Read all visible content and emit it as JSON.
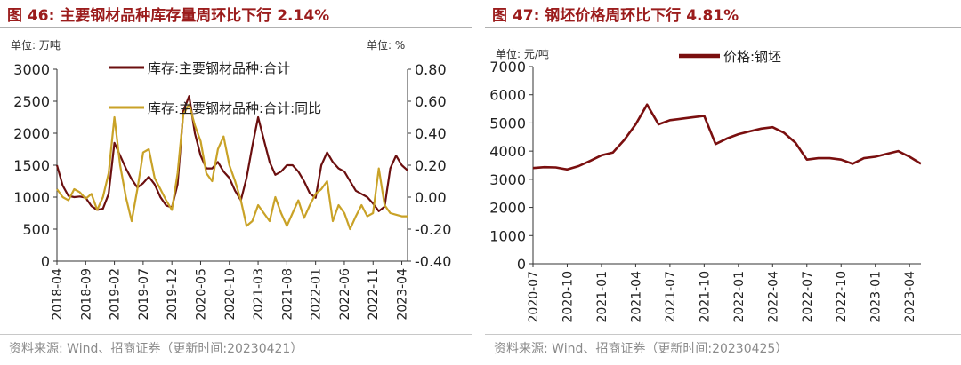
{
  "charts": [
    {
      "title": "图 46:  主要钢材品种库存量周环比下行 2.14%",
      "unit_left": "单位:  万吨",
      "unit_right": "单位:  %",
      "source": "资料来源:  Wind、招商证券（更新时间:20230421）"
    },
    {
      "title": "图 47:  钢坯价格周环比下行 4.81%",
      "unit_left": "单位:  元/吨",
      "source": "资料来源:  Wind、招商证券（更新时间:20230425）"
    }
  ],
  "chart_data": [
    {
      "type": "line",
      "x_tick_labels": [
        "2018-04",
        "2018-09",
        "2019-02",
        "2019-07",
        "2019-12",
        "2020-05",
        "2020-10",
        "2021-03",
        "2021-08",
        "2022-01",
        "2022-06",
        "2022-11",
        "2023-04"
      ],
      "x_range": [
        "2018-04",
        "2023-05"
      ],
      "y_left": {
        "ticks": [
          "0",
          "500",
          "1000",
          "1500",
          "2000",
          "2500",
          "3000"
        ],
        "ylim": [
          0,
          3000
        ]
      },
      "y_right": {
        "ticks": [
          "-0.40",
          "-0.20",
          "0.00",
          "0.20",
          "0.40",
          "0.60",
          "0.80"
        ],
        "ylim": [
          -0.4,
          0.8
        ]
      },
      "legend_position": "top-center",
      "series": [
        {
          "name": "库存:主要钢材品种:合计",
          "axis": "left",
          "color": "#6b0f0f",
          "points": [
            [
              "2018-04",
              1500
            ],
            [
              "2018-05",
              1180
            ],
            [
              "2018-06",
              1020
            ],
            [
              "2018-07",
              1000
            ],
            [
              "2018-08",
              1010
            ],
            [
              "2018-09",
              990
            ],
            [
              "2018-10",
              860
            ],
            [
              "2018-11",
              800
            ],
            [
              "2018-12",
              820
            ],
            [
              "2019-01",
              1050
            ],
            [
              "2019-02",
              1850
            ],
            [
              "2019-03",
              1650
            ],
            [
              "2019-04",
              1450
            ],
            [
              "2019-05",
              1280
            ],
            [
              "2019-06",
              1150
            ],
            [
              "2019-07",
              1220
            ],
            [
              "2019-08",
              1320
            ],
            [
              "2019-09",
              1200
            ],
            [
              "2019-10",
              1000
            ],
            [
              "2019-11",
              870
            ],
            [
              "2019-12",
              840
            ],
            [
              "2020-01",
              1200
            ],
            [
              "2020-02",
              2350
            ],
            [
              "2020-03",
              2580
            ],
            [
              "2020-04",
              2000
            ],
            [
              "2020-05",
              1650
            ],
            [
              "2020-06",
              1450
            ],
            [
              "2020-07",
              1450
            ],
            [
              "2020-08",
              1550
            ],
            [
              "2020-09",
              1400
            ],
            [
              "2020-10",
              1300
            ],
            [
              "2020-11",
              1100
            ],
            [
              "2020-12",
              950
            ],
            [
              "2021-01",
              1300
            ],
            [
              "2021-02",
              1800
            ],
            [
              "2021-03",
              2250
            ],
            [
              "2021-04",
              1900
            ],
            [
              "2021-05",
              1550
            ],
            [
              "2021-06",
              1350
            ],
            [
              "2021-07",
              1400
            ],
            [
              "2021-08",
              1500
            ],
            [
              "2021-09",
              1500
            ],
            [
              "2021-10",
              1400
            ],
            [
              "2021-11",
              1250
            ],
            [
              "2021-12",
              1060
            ],
            [
              "2022-01",
              990
            ],
            [
              "2022-02",
              1500
            ],
            [
              "2022-03",
              1700
            ],
            [
              "2022-04",
              1550
            ],
            [
              "2022-05",
              1450
            ],
            [
              "2022-06",
              1400
            ],
            [
              "2022-07",
              1250
            ],
            [
              "2022-08",
              1100
            ],
            [
              "2022-09",
              1050
            ],
            [
              "2022-10",
              1000
            ],
            [
              "2022-11",
              900
            ],
            [
              "2022-12",
              780
            ],
            [
              "2023-01",
              850
            ],
            [
              "2023-02",
              1450
            ],
            [
              "2023-03",
              1650
            ],
            [
              "2023-04",
              1500
            ],
            [
              "2023-05",
              1420
            ]
          ]
        },
        {
          "name": "库存:主要钢材品种:合计:同比",
          "axis": "right",
          "color": "#c9a227",
          "points": [
            [
              "2018-04",
              0.05
            ],
            [
              "2018-05",
              0.0
            ],
            [
              "2018-06",
              -0.02
            ],
            [
              "2018-07",
              0.05
            ],
            [
              "2018-08",
              0.03
            ],
            [
              "2018-09",
              -0.01
            ],
            [
              "2018-10",
              0.02
            ],
            [
              "2018-11",
              -0.08
            ],
            [
              "2018-12",
              0.0
            ],
            [
              "2019-01",
              0.15
            ],
            [
              "2019-02",
              0.5
            ],
            [
              "2019-03",
              0.2
            ],
            [
              "2019-04",
              0.0
            ],
            [
              "2019-05",
              -0.15
            ],
            [
              "2019-06",
              0.05
            ],
            [
              "2019-07",
              0.28
            ],
            [
              "2019-08",
              0.3
            ],
            [
              "2019-09",
              0.12
            ],
            [
              "2019-10",
              0.05
            ],
            [
              "2019-11",
              -0.02
            ],
            [
              "2019-12",
              -0.08
            ],
            [
              "2020-01",
              0.15
            ],
            [
              "2020-02",
              0.52
            ],
            [
              "2020-03",
              0.58
            ],
            [
              "2020-04",
              0.45
            ],
            [
              "2020-05",
              0.35
            ],
            [
              "2020-06",
              0.15
            ],
            [
              "2020-07",
              0.1
            ],
            [
              "2020-08",
              0.3
            ],
            [
              "2020-09",
              0.38
            ],
            [
              "2020-10",
              0.2
            ],
            [
              "2020-11",
              0.1
            ],
            [
              "2020-12",
              -0.02
            ],
            [
              "2021-01",
              -0.18
            ],
            [
              "2021-02",
              -0.15
            ],
            [
              "2021-03",
              -0.05
            ],
            [
              "2021-04",
              -0.1
            ],
            [
              "2021-05",
              -0.15
            ],
            [
              "2021-06",
              0.0
            ],
            [
              "2021-07",
              -0.1
            ],
            [
              "2021-08",
              -0.18
            ],
            [
              "2021-09",
              -0.1
            ],
            [
              "2021-10",
              -0.02
            ],
            [
              "2021-11",
              -0.13
            ],
            [
              "2021-12",
              -0.05
            ],
            [
              "2022-01",
              0.02
            ],
            [
              "2022-02",
              0.05
            ],
            [
              "2022-03",
              0.1
            ],
            [
              "2022-04",
              -0.15
            ],
            [
              "2022-05",
              -0.05
            ],
            [
              "2022-06",
              -0.1
            ],
            [
              "2022-07",
              -0.2
            ],
            [
              "2022-08",
              -0.12
            ],
            [
              "2022-09",
              -0.05
            ],
            [
              "2022-10",
              -0.12
            ],
            [
              "2022-11",
              -0.1
            ],
            [
              "2022-12",
              0.18
            ],
            [
              "2023-01",
              -0.05
            ],
            [
              "2023-02",
              -0.1
            ],
            [
              "2023-03",
              -0.11
            ],
            [
              "2023-04",
              -0.12
            ],
            [
              "2023-05",
              -0.12
            ]
          ]
        }
      ]
    },
    {
      "type": "line",
      "x_tick_labels": [
        "2020-07",
        "2020-10",
        "2021-01",
        "2021-04",
        "2021-07",
        "2021-10",
        "2022-01",
        "2022-04",
        "2022-07",
        "2022-10",
        "2023-01",
        "2023-04"
      ],
      "x_range": [
        "2020-07",
        "2023-05"
      ],
      "y_left": {
        "ticks": [
          "0",
          "1000",
          "2000",
          "3000",
          "4000",
          "5000",
          "6000",
          "7000"
        ],
        "ylim": [
          0,
          7000
        ]
      },
      "legend_position": "top-center",
      "series": [
        {
          "name": "价格:钢坯",
          "axis": "left",
          "color": "#7a0f0f",
          "points": [
            [
              "2020-07",
              3400
            ],
            [
              "2020-08",
              3430
            ],
            [
              "2020-09",
              3420
            ],
            [
              "2020-10",
              3350
            ],
            [
              "2020-11",
              3470
            ],
            [
              "2020-12",
              3650
            ],
            [
              "2021-01",
              3850
            ],
            [
              "2021-02",
              3950
            ],
            [
              "2021-03",
              4400
            ],
            [
              "2021-04",
              4950
            ],
            [
              "2021-05",
              5650
            ],
            [
              "2021-06",
              4950
            ],
            [
              "2021-07",
              5100
            ],
            [
              "2021-08",
              5150
            ],
            [
              "2021-09",
              5200
            ],
            [
              "2021-10",
              5250
            ],
            [
              "2021-11",
              4250
            ],
            [
              "2021-12",
              4450
            ],
            [
              "2022-01",
              4600
            ],
            [
              "2022-02",
              4700
            ],
            [
              "2022-03",
              4800
            ],
            [
              "2022-04",
              4850
            ],
            [
              "2022-05",
              4650
            ],
            [
              "2022-06",
              4300
            ],
            [
              "2022-07",
              3700
            ],
            [
              "2022-08",
              3750
            ],
            [
              "2022-09",
              3750
            ],
            [
              "2022-10",
              3700
            ],
            [
              "2022-11",
              3550
            ],
            [
              "2022-12",
              3750
            ],
            [
              "2023-01",
              3800
            ],
            [
              "2023-02",
              3900
            ],
            [
              "2023-03",
              4000
            ],
            [
              "2023-04",
              3800
            ],
            [
              "2023-05",
              3550
            ]
          ]
        }
      ]
    }
  ]
}
